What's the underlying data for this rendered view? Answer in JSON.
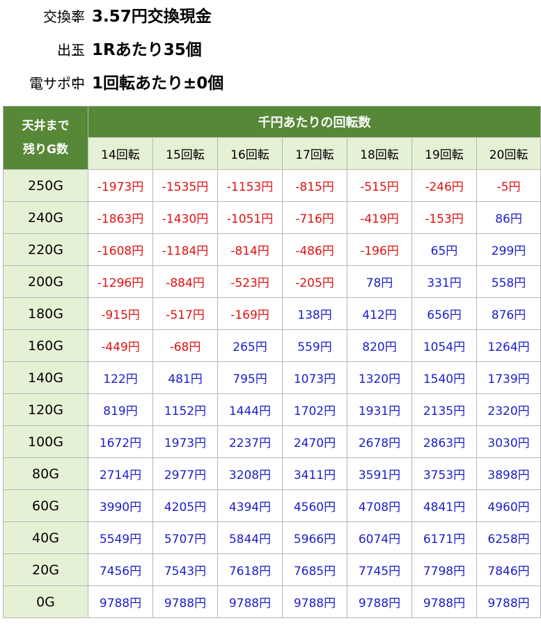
{
  "info": [
    {
      "label": "交換率",
      "sep": "：",
      "value": "3.57円交換現金"
    },
    {
      "label": "出玉",
      "sep": "：",
      "value": "1Rあたり35個"
    },
    {
      "label": "電サポ中",
      "sep": "：",
      "value": "1回転あたり±0個"
    }
  ],
  "table": {
    "corner_line1": "天井まで",
    "corner_line2": "残りG数",
    "group_header": "千円あたりの回転数",
    "columns": [
      "14回転",
      "15回転",
      "16回転",
      "17回転",
      "18回転",
      "19回転",
      "20回転"
    ],
    "rows": [
      {
        "label": "250G",
        "values": [
          "-1973円",
          "-1535円",
          "-1153円",
          "-815円",
          "-515円",
          "-246円",
          "-5円"
        ]
      },
      {
        "label": "240G",
        "values": [
          "-1863円",
          "-1430円",
          "-1051円",
          "-716円",
          "-419円",
          "-153円",
          "86円"
        ]
      },
      {
        "label": "220G",
        "values": [
          "-1608円",
          "-1184円",
          "-814円",
          "-486円",
          "-196円",
          "65円",
          "299円"
        ]
      },
      {
        "label": "200G",
        "values": [
          "-1296円",
          "-884円",
          "-523円",
          "-205円",
          "78円",
          "331円",
          "558円"
        ]
      },
      {
        "label": "180G",
        "values": [
          "-915円",
          "-517円",
          "-169円",
          "138円",
          "412円",
          "656円",
          "876円"
        ]
      },
      {
        "label": "160G",
        "values": [
          "-449円",
          "-68円",
          "265円",
          "559円",
          "820円",
          "1054円",
          "1264円"
        ]
      },
      {
        "label": "140G",
        "values": [
          "122円",
          "481円",
          "795円",
          "1073円",
          "1320円",
          "1540円",
          "1739円"
        ]
      },
      {
        "label": "120G",
        "values": [
          "819円",
          "1152円",
          "1444円",
          "1702円",
          "1931円",
          "2135円",
          "2320円"
        ]
      },
      {
        "label": "100G",
        "values": [
          "1672円",
          "1973円",
          "2237円",
          "2470円",
          "2678円",
          "2863円",
          "3030円"
        ]
      },
      {
        "label": "80G",
        "values": [
          "2714円",
          "2977円",
          "3208円",
          "3411円",
          "3591円",
          "3753円",
          "3898円"
        ]
      },
      {
        "label": "60G",
        "values": [
          "3990円",
          "4205円",
          "4394円",
          "4560円",
          "4708円",
          "4841円",
          "4960円"
        ]
      },
      {
        "label": "40G",
        "values": [
          "5549円",
          "5707円",
          "5844円",
          "5966円",
          "6074円",
          "6171円",
          "6258円"
        ]
      },
      {
        "label": "20G",
        "values": [
          "7456円",
          "7543円",
          "7618円",
          "7685円",
          "7745円",
          "7798円",
          "7846円"
        ]
      },
      {
        "label": "0G",
        "values": [
          "9788円",
          "9788円",
          "9788円",
          "9788円",
          "9788円",
          "9788円",
          "9788円"
        ]
      }
    ]
  },
  "colors": {
    "header_green": "#578837",
    "light_green": "#e5f1d5",
    "negative": "#e01010",
    "positive": "#1c1ccc"
  }
}
